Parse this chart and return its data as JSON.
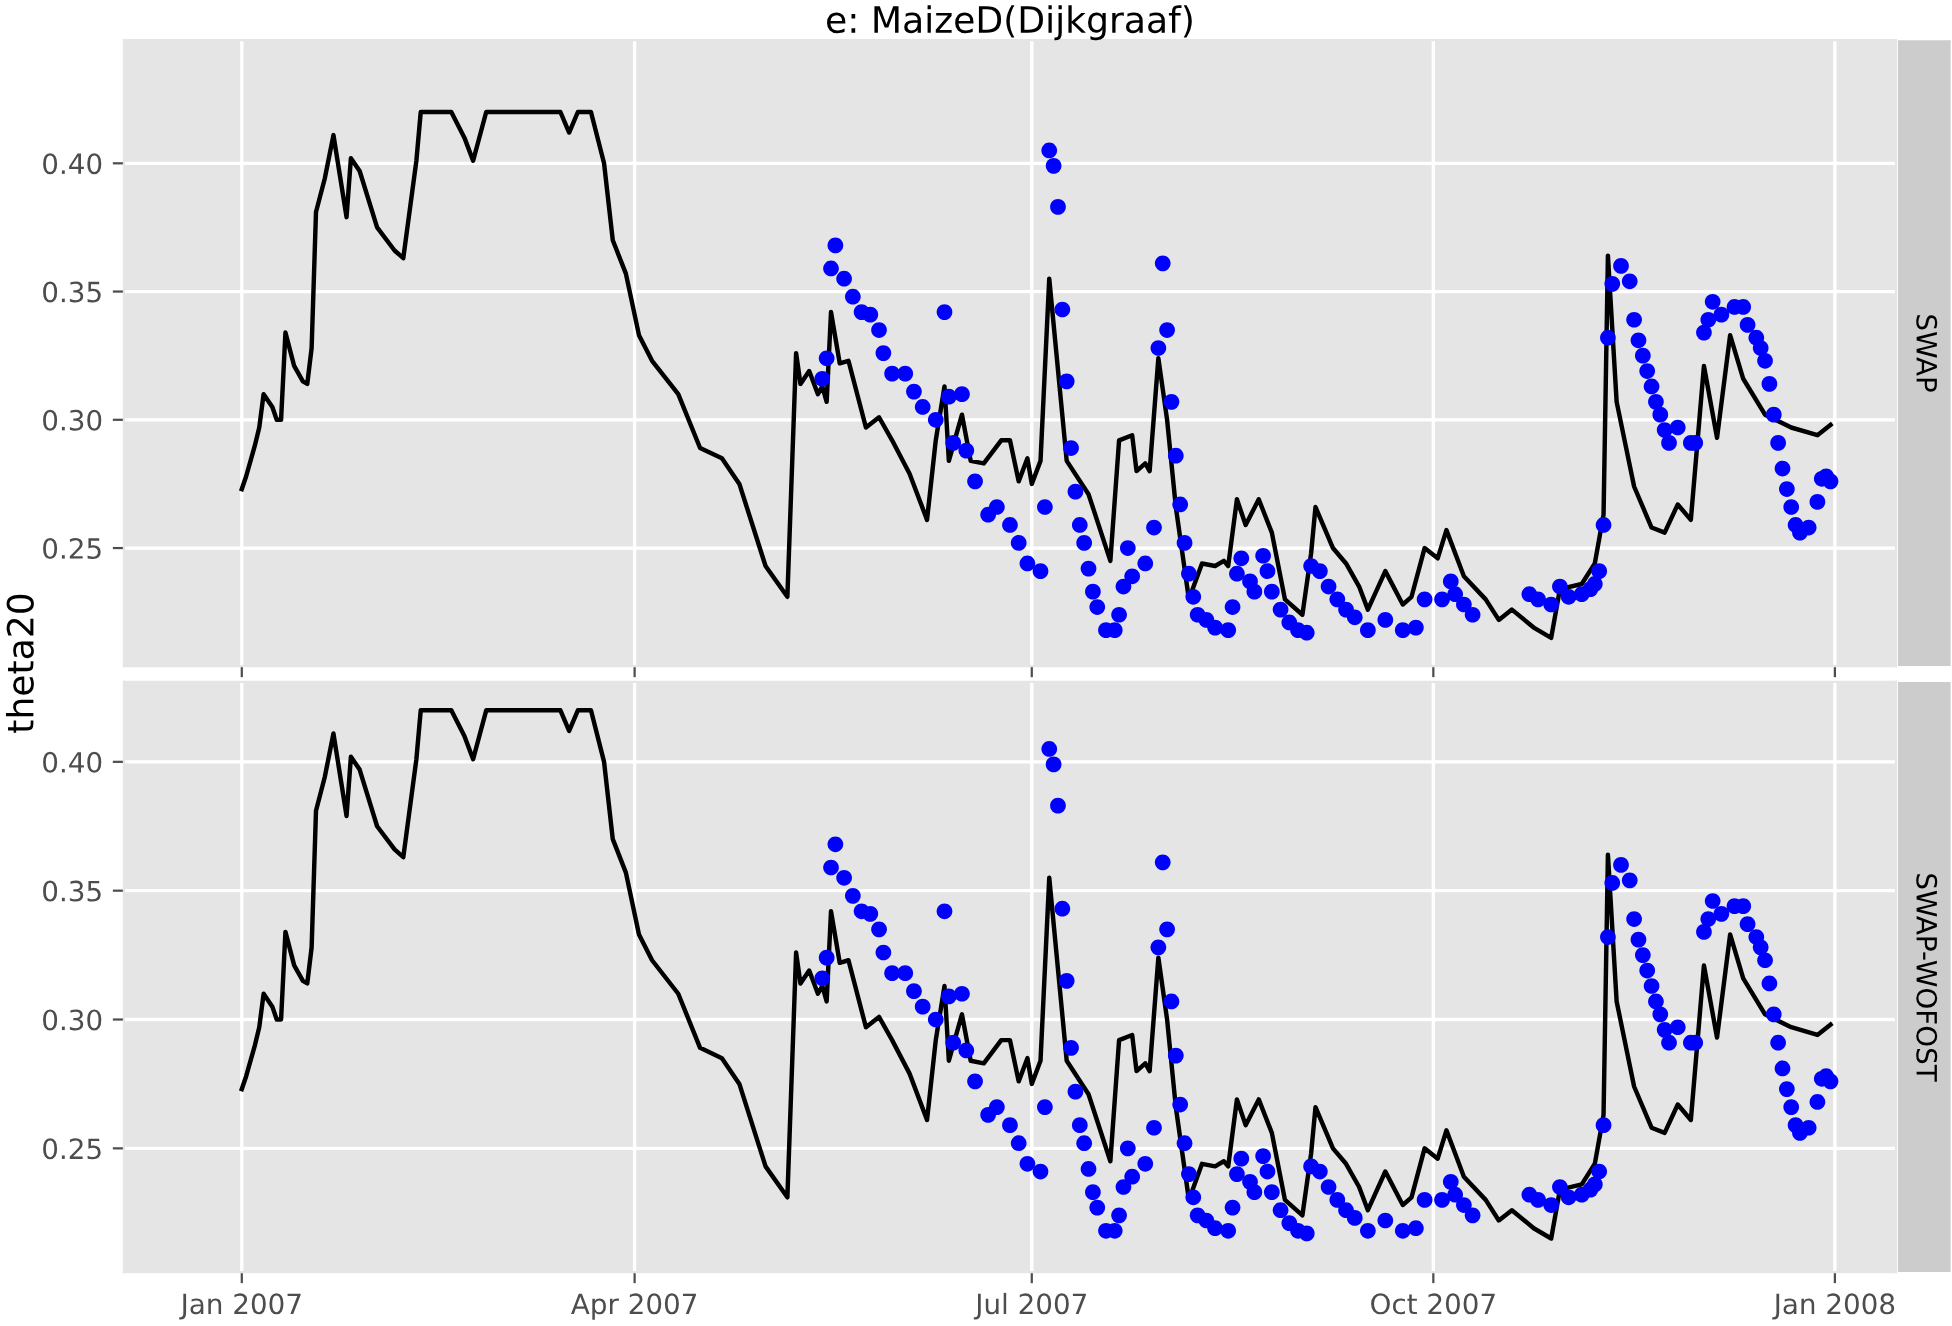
{
  "chart_data": [
    {
      "type": "line",
      "title": "e: MaizeD(Dijkgraaf)",
      "ylabel": "theta20",
      "annotations": [
        "SWAP"
      ],
      "grid": true,
      "tick_labels": "y",
      "xlim": [
        "2006-12-05",
        "2008-01-15"
      ],
      "ylim": [
        0.204,
        0.448
      ],
      "xticks": [
        {
          "value": "2007-01-01",
          "label": null
        },
        {
          "value": "2007-04-01",
          "label": null
        },
        {
          "value": "2007-07-01",
          "label": null
        },
        {
          "value": "2007-10-01",
          "label": null
        },
        {
          "value": "2008-01-01",
          "label": null
        }
      ],
      "yticks": [
        {
          "value": 0.25,
          "label": "0.25"
        },
        {
          "value": 0.3,
          "label": "0.30"
        },
        {
          "value": 0.35,
          "label": "0.35"
        },
        {
          "value": 0.4,
          "label": "0.40"
        }
      ],
      "series": [
        {
          "color": "#000000",
          "marker": "none",
          "line_style": "solid",
          "x": [
            "2007-01-01",
            "2007-01-02",
            "2007-01-04",
            "2007-01-05",
            "2007-01-06",
            "2007-01-08",
            "2007-01-09",
            "2007-01-10",
            "2007-01-11",
            "2007-01-13",
            "2007-01-15",
            "2007-01-16",
            "2007-01-17",
            "2007-01-18",
            "2007-01-20",
            "2007-01-22",
            "2007-01-25",
            "2007-01-26",
            "2007-01-28",
            "2007-02-01",
            "2007-02-05",
            "2007-02-07",
            "2007-02-10",
            "2007-02-11",
            "2007-02-18",
            "2007-02-21",
            "2007-02-23",
            "2007-02-26",
            "2007-03-15",
            "2007-03-17",
            "2007-03-19",
            "2007-03-22",
            "2007-03-25",
            "2007-03-27",
            "2007-03-30",
            "2007-04-02",
            "2007-04-05",
            "2007-04-11",
            "2007-04-16",
            "2007-04-21",
            "2007-04-25",
            "2007-05-01",
            "2007-05-06",
            "2007-05-08",
            "2007-05-09",
            "2007-05-11",
            "2007-05-13",
            "2007-05-14",
            "2007-05-15",
            "2007-05-16",
            "2007-05-18",
            "2007-05-20",
            "2007-05-24",
            "2007-05-27",
            "2007-05-30",
            "2007-06-03",
            "2007-06-07",
            "2007-06-09",
            "2007-06-11",
            "2007-06-12",
            "2007-06-15",
            "2007-06-17",
            "2007-06-20",
            "2007-06-24",
            "2007-06-26",
            "2007-06-28",
            "2007-06-30",
            "2007-07-01",
            "2007-07-03",
            "2007-07-05",
            "2007-07-09",
            "2007-07-14",
            "2007-07-19",
            "2007-07-21",
            "2007-07-24",
            "2007-07-25",
            "2007-07-27",
            "2007-07-28",
            "2007-07-30",
            "2007-08-01",
            "2007-08-03",
            "2007-08-06",
            "2007-08-09",
            "2007-08-12",
            "2007-08-14",
            "2007-08-15",
            "2007-08-17",
            "2007-08-19",
            "2007-08-22",
            "2007-08-25",
            "2007-08-28",
            "2007-09-01",
            "2007-09-03",
            "2007-09-04",
            "2007-09-08",
            "2007-09-11",
            "2007-09-14",
            "2007-09-16",
            "2007-09-20",
            "2007-09-24",
            "2007-09-26",
            "2007-09-29",
            "2007-10-02",
            "2007-10-04",
            "2007-10-08",
            "2007-10-13",
            "2007-10-16",
            "2007-10-19",
            "2007-10-24",
            "2007-10-28",
            "2007-10-30",
            "2007-11-04",
            "2007-11-07",
            "2007-11-09",
            "2007-11-10",
            "2007-11-12",
            "2007-11-16",
            "2007-11-20",
            "2007-11-23",
            "2007-11-26",
            "2007-11-29",
            "2007-12-02",
            "2007-12-05",
            "2007-12-08",
            "2007-12-11",
            "2007-12-16",
            "2007-12-22",
            "2007-12-28",
            "2007-12-31"
          ],
          "values": [
            0.273,
            0.278,
            0.29,
            0.297,
            0.31,
            0.305,
            0.3,
            0.3,
            0.334,
            0.321,
            0.315,
            0.314,
            0.328,
            0.381,
            0.394,
            0.411,
            0.379,
            0.402,
            0.397,
            0.375,
            0.366,
            0.363,
            0.401,
            0.42,
            0.42,
            0.41,
            0.401,
            0.42,
            0.42,
            0.412,
            0.42,
            0.42,
            0.4,
            0.37,
            0.357,
            0.333,
            0.323,
            0.31,
            0.289,
            0.285,
            0.275,
            0.243,
            0.231,
            0.326,
            0.314,
            0.319,
            0.31,
            0.313,
            0.307,
            0.342,
            0.322,
            0.323,
            0.297,
            0.301,
            0.292,
            0.279,
            0.261,
            0.292,
            0.313,
            0.284,
            0.302,
            0.284,
            0.283,
            0.292,
            0.292,
            0.276,
            0.285,
            0.275,
            0.284,
            0.355,
            0.284,
            0.271,
            0.245,
            0.292,
            0.294,
            0.28,
            0.283,
            0.28,
            0.324,
            0.3,
            0.266,
            0.23,
            0.244,
            0.243,
            0.245,
            0.243,
            0.269,
            0.259,
            0.269,
            0.256,
            0.23,
            0.224,
            0.248,
            0.266,
            0.25,
            0.244,
            0.235,
            0.226,
            0.241,
            0.228,
            0.231,
            0.25,
            0.246,
            0.257,
            0.239,
            0.23,
            0.222,
            0.226,
            0.219,
            0.215,
            0.234,
            0.236,
            0.244,
            0.263,
            0.364,
            0.307,
            0.274,
            0.258,
            0.256,
            0.267,
            0.261,
            0.321,
            0.293,
            0.333,
            0.316,
            0.302,
            0.297,
            0.294,
            0.298
          ]
        },
        {
          "type": "scatter",
          "color": "#0000ff",
          "marker": "circle",
          "x": [
            "2007-05-14",
            "2007-05-15",
            "2007-05-16",
            "2007-05-17",
            "2007-05-19",
            "2007-05-21",
            "2007-05-23",
            "2007-05-25",
            "2007-05-27",
            "2007-05-28",
            "2007-05-30",
            "2007-06-02",
            "2007-06-04",
            "2007-06-06",
            "2007-06-09",
            "2007-06-11",
            "2007-06-12",
            "2007-06-13",
            "2007-06-15",
            "2007-06-16",
            "2007-06-18",
            "2007-06-21",
            "2007-06-23",
            "2007-06-26",
            "2007-06-28",
            "2007-06-30",
            "2007-07-03",
            "2007-07-04",
            "2007-07-05",
            "2007-07-06",
            "2007-07-07",
            "2007-07-08",
            "2007-07-09",
            "2007-07-10",
            "2007-07-11",
            "2007-07-12",
            "2007-07-13",
            "2007-07-14",
            "2007-07-15",
            "2007-07-16",
            "2007-07-18",
            "2007-07-20",
            "2007-07-21",
            "2007-07-22",
            "2007-07-23",
            "2007-07-24",
            "2007-07-27",
            "2007-07-29",
            "2007-07-30",
            "2007-07-31",
            "2007-08-01",
            "2007-08-02",
            "2007-08-03",
            "2007-08-04",
            "2007-08-05",
            "2007-08-06",
            "2007-08-07",
            "2007-08-08",
            "2007-08-10",
            "2007-08-12",
            "2007-08-15",
            "2007-08-16",
            "2007-08-17",
            "2007-08-18",
            "2007-08-20",
            "2007-08-21",
            "2007-08-23",
            "2007-08-24",
            "2007-08-25",
            "2007-08-27",
            "2007-08-29",
            "2007-08-31",
            "2007-09-02",
            "2007-09-03",
            "2007-09-05",
            "2007-09-07",
            "2007-09-09",
            "2007-09-11",
            "2007-09-13",
            "2007-09-16",
            "2007-09-20",
            "2007-09-24",
            "2007-09-27",
            "2007-09-29",
            "2007-10-03",
            "2007-10-05",
            "2007-10-06",
            "2007-10-08",
            "2007-10-10",
            "2007-10-23",
            "2007-10-25",
            "2007-10-28",
            "2007-10-30",
            "2007-11-01",
            "2007-11-04",
            "2007-11-06",
            "2007-11-07",
            "2007-11-08",
            "2007-11-09",
            "2007-11-10",
            "2007-11-11",
            "2007-11-13",
            "2007-11-15",
            "2007-11-16",
            "2007-11-17",
            "2007-11-18",
            "2007-11-19",
            "2007-11-20",
            "2007-11-21",
            "2007-11-22",
            "2007-11-23",
            "2007-11-24",
            "2007-11-26",
            "2007-11-29",
            "2007-11-30",
            "2007-12-02",
            "2007-12-03",
            "2007-12-04",
            "2007-12-06",
            "2007-12-09",
            "2007-12-11",
            "2007-12-12",
            "2007-12-14",
            "2007-12-15",
            "2007-12-16",
            "2007-12-17",
            "2007-12-18",
            "2007-12-19",
            "2007-12-20",
            "2007-12-21",
            "2007-12-22",
            "2007-12-23",
            "2007-12-24",
            "2007-12-26",
            "2007-12-28",
            "2007-12-29",
            "2007-12-30",
            "2007-12-31"
          ],
          "values": [
            0.316,
            0.324,
            0.359,
            0.368,
            0.355,
            0.348,
            0.342,
            0.341,
            0.335,
            0.326,
            0.318,
            0.318,
            0.311,
            0.305,
            0.3,
            0.342,
            0.309,
            0.291,
            0.31,
            0.288,
            0.276,
            0.263,
            0.266,
            0.259,
            0.252,
            0.244,
            0.241,
            0.266,
            0.405,
            0.399,
            0.383,
            0.343,
            0.315,
            0.289,
            0.272,
            0.259,
            0.252,
            0.242,
            0.233,
            0.227,
            0.218,
            0.218,
            0.224,
            0.235,
            0.25,
            0.239,
            0.244,
            0.258,
            0.328,
            0.361,
            0.335,
            0.307,
            0.286,
            0.267,
            0.252,
            0.24,
            0.231,
            0.224,
            0.222,
            0.219,
            0.218,
            0.227,
            0.24,
            0.246,
            0.237,
            0.233,
            0.247,
            0.241,
            0.233,
            0.226,
            0.221,
            0.218,
            0.217,
            0.243,
            0.241,
            0.235,
            0.23,
            0.226,
            0.223,
            0.218,
            0.222,
            0.218,
            0.219,
            0.23,
            0.23,
            0.237,
            0.232,
            0.228,
            0.224,
            0.232,
            0.23,
            0.228,
            0.235,
            0.231,
            0.232,
            0.234,
            0.236,
            0.241,
            0.259,
            0.332,
            0.353,
            0.36,
            0.354,
            0.339,
            0.331,
            0.325,
            0.319,
            0.313,
            0.307,
            0.302,
            0.296,
            0.291,
            0.297,
            0.291,
            0.291,
            0.334,
            0.339,
            0.346,
            0.341,
            0.344,
            0.344,
            0.337,
            0.332,
            0.328,
            0.323,
            0.314,
            0.302,
            0.291,
            0.281,
            0.273,
            0.266,
            0.259,
            0.256,
            0.258,
            0.268,
            0.277,
            0.278,
            0.276
          ]
        }
      ]
    },
    {
      "type": "line",
      "annotations": [
        "SWAP-WOFOST"
      ],
      "grid": true,
      "xlim": [
        "2006-12-05",
        "2008-01-15"
      ],
      "ylim": [
        0.202,
        0.431
      ],
      "xticks": [
        {
          "value": "2007-01-01",
          "label": "Jan 2007"
        },
        {
          "value": "2007-04-01",
          "label": "Apr 2007"
        },
        {
          "value": "2007-07-01",
          "label": "Jul 2007"
        },
        {
          "value": "2007-10-01",
          "label": "Oct 2007"
        },
        {
          "value": "2008-01-01",
          "label": "Jan 2008"
        }
      ],
      "yticks": [
        {
          "value": 0.25,
          "label": "0.25"
        },
        {
          "value": 0.3,
          "label": "0.30"
        },
        {
          "value": 0.35,
          "label": "0.35"
        },
        {
          "value": 0.4,
          "label": "0.40"
        }
      ],
      "series": [
        {
          "color": "#000000",
          "marker": "none",
          "line_style": "solid",
          "x": [
            "2007-01-01",
            "2007-01-02",
            "2007-01-04",
            "2007-01-05",
            "2007-01-06",
            "2007-01-08",
            "2007-01-09",
            "2007-01-10",
            "2007-01-11",
            "2007-01-13",
            "2007-01-15",
            "2007-01-16",
            "2007-01-17",
            "2007-01-18",
            "2007-01-20",
            "2007-01-22",
            "2007-01-25",
            "2007-01-26",
            "2007-01-28",
            "2007-02-01",
            "2007-02-05",
            "2007-02-07",
            "2007-02-10",
            "2007-02-11",
            "2007-02-18",
            "2007-02-21",
            "2007-02-23",
            "2007-02-26",
            "2007-03-15",
            "2007-03-17",
            "2007-03-19",
            "2007-03-22",
            "2007-03-25",
            "2007-03-27",
            "2007-03-30",
            "2007-04-02",
            "2007-04-05",
            "2007-04-11",
            "2007-04-16",
            "2007-04-21",
            "2007-04-25",
            "2007-05-01",
            "2007-05-06",
            "2007-05-08",
            "2007-05-09",
            "2007-05-11",
            "2007-05-13",
            "2007-05-14",
            "2007-05-15",
            "2007-05-16",
            "2007-05-18",
            "2007-05-20",
            "2007-05-24",
            "2007-05-27",
            "2007-05-30",
            "2007-06-03",
            "2007-06-07",
            "2007-06-09",
            "2007-06-11",
            "2007-06-12",
            "2007-06-15",
            "2007-06-17",
            "2007-06-20",
            "2007-06-24",
            "2007-06-26",
            "2007-06-28",
            "2007-06-30",
            "2007-07-01",
            "2007-07-03",
            "2007-07-05",
            "2007-07-09",
            "2007-07-14",
            "2007-07-19",
            "2007-07-21",
            "2007-07-24",
            "2007-07-25",
            "2007-07-27",
            "2007-07-28",
            "2007-07-30",
            "2007-08-01",
            "2007-08-03",
            "2007-08-06",
            "2007-08-09",
            "2007-08-12",
            "2007-08-14",
            "2007-08-15",
            "2007-08-17",
            "2007-08-19",
            "2007-08-22",
            "2007-08-25",
            "2007-08-28",
            "2007-09-01",
            "2007-09-03",
            "2007-09-04",
            "2007-09-08",
            "2007-09-11",
            "2007-09-14",
            "2007-09-16",
            "2007-09-20",
            "2007-09-24",
            "2007-09-26",
            "2007-09-29",
            "2007-10-02",
            "2007-10-04",
            "2007-10-08",
            "2007-10-13",
            "2007-10-16",
            "2007-10-19",
            "2007-10-24",
            "2007-10-28",
            "2007-10-30",
            "2007-11-04",
            "2007-11-07",
            "2007-11-09",
            "2007-11-10",
            "2007-11-12",
            "2007-11-16",
            "2007-11-20",
            "2007-11-23",
            "2007-11-26",
            "2007-11-29",
            "2007-12-02",
            "2007-12-05",
            "2007-12-08",
            "2007-12-11",
            "2007-12-16",
            "2007-12-22",
            "2007-12-28",
            "2007-12-31"
          ],
          "values": [
            0.273,
            0.278,
            0.29,
            0.297,
            0.31,
            0.305,
            0.3,
            0.3,
            0.334,
            0.321,
            0.315,
            0.314,
            0.328,
            0.381,
            0.394,
            0.411,
            0.379,
            0.402,
            0.397,
            0.375,
            0.366,
            0.363,
            0.401,
            0.42,
            0.42,
            0.41,
            0.401,
            0.42,
            0.42,
            0.412,
            0.42,
            0.42,
            0.4,
            0.37,
            0.357,
            0.333,
            0.323,
            0.31,
            0.289,
            0.285,
            0.275,
            0.243,
            0.231,
            0.326,
            0.314,
            0.319,
            0.31,
            0.313,
            0.307,
            0.342,
            0.322,
            0.323,
            0.297,
            0.301,
            0.292,
            0.279,
            0.261,
            0.292,
            0.313,
            0.284,
            0.302,
            0.284,
            0.283,
            0.292,
            0.292,
            0.276,
            0.285,
            0.275,
            0.284,
            0.355,
            0.284,
            0.271,
            0.245,
            0.292,
            0.294,
            0.28,
            0.283,
            0.28,
            0.324,
            0.3,
            0.266,
            0.23,
            0.244,
            0.243,
            0.245,
            0.243,
            0.269,
            0.259,
            0.269,
            0.256,
            0.23,
            0.224,
            0.248,
            0.266,
            0.25,
            0.244,
            0.235,
            0.226,
            0.241,
            0.228,
            0.231,
            0.25,
            0.246,
            0.257,
            0.239,
            0.23,
            0.222,
            0.226,
            0.219,
            0.215,
            0.234,
            0.236,
            0.244,
            0.263,
            0.364,
            0.307,
            0.274,
            0.258,
            0.256,
            0.267,
            0.261,
            0.321,
            0.293,
            0.333,
            0.316,
            0.302,
            0.297,
            0.294,
            0.298
          ]
        },
        {
          "type": "scatter",
          "color": "#0000ff",
          "marker": "circle",
          "x": [
            "2007-05-14",
            "2007-05-15",
            "2007-05-16",
            "2007-05-17",
            "2007-05-19",
            "2007-05-21",
            "2007-05-23",
            "2007-05-25",
            "2007-05-27",
            "2007-05-28",
            "2007-05-30",
            "2007-06-02",
            "2007-06-04",
            "2007-06-06",
            "2007-06-09",
            "2007-06-11",
            "2007-06-12",
            "2007-06-13",
            "2007-06-15",
            "2007-06-16",
            "2007-06-18",
            "2007-06-21",
            "2007-06-23",
            "2007-06-26",
            "2007-06-28",
            "2007-06-30",
            "2007-07-03",
            "2007-07-04",
            "2007-07-05",
            "2007-07-06",
            "2007-07-07",
            "2007-07-08",
            "2007-07-09",
            "2007-07-10",
            "2007-07-11",
            "2007-07-12",
            "2007-07-13",
            "2007-07-14",
            "2007-07-15",
            "2007-07-16",
            "2007-07-18",
            "2007-07-20",
            "2007-07-21",
            "2007-07-22",
            "2007-07-23",
            "2007-07-24",
            "2007-07-27",
            "2007-07-29",
            "2007-07-30",
            "2007-07-31",
            "2007-08-01",
            "2007-08-02",
            "2007-08-03",
            "2007-08-04",
            "2007-08-05",
            "2007-08-06",
            "2007-08-07",
            "2007-08-08",
            "2007-08-10",
            "2007-08-12",
            "2007-08-15",
            "2007-08-16",
            "2007-08-17",
            "2007-08-18",
            "2007-08-20",
            "2007-08-21",
            "2007-08-23",
            "2007-08-24",
            "2007-08-25",
            "2007-08-27",
            "2007-08-29",
            "2007-08-31",
            "2007-09-02",
            "2007-09-03",
            "2007-09-05",
            "2007-09-07",
            "2007-09-09",
            "2007-09-11",
            "2007-09-13",
            "2007-09-16",
            "2007-09-20",
            "2007-09-24",
            "2007-09-27",
            "2007-09-29",
            "2007-10-03",
            "2007-10-05",
            "2007-10-06",
            "2007-10-08",
            "2007-10-10",
            "2007-10-23",
            "2007-10-25",
            "2007-10-28",
            "2007-10-30",
            "2007-11-01",
            "2007-11-04",
            "2007-11-06",
            "2007-11-07",
            "2007-11-08",
            "2007-11-09",
            "2007-11-10",
            "2007-11-11",
            "2007-11-13",
            "2007-11-15",
            "2007-11-16",
            "2007-11-17",
            "2007-11-18",
            "2007-11-19",
            "2007-11-20",
            "2007-11-21",
            "2007-11-22",
            "2007-11-23",
            "2007-11-24",
            "2007-11-26",
            "2007-11-29",
            "2007-11-30",
            "2007-12-02",
            "2007-12-03",
            "2007-12-04",
            "2007-12-06",
            "2007-12-09",
            "2007-12-11",
            "2007-12-12",
            "2007-12-14",
            "2007-12-15",
            "2007-12-16",
            "2007-12-17",
            "2007-12-18",
            "2007-12-19",
            "2007-12-20",
            "2007-12-21",
            "2007-12-22",
            "2007-12-23",
            "2007-12-24",
            "2007-12-26",
            "2007-12-28",
            "2007-12-29",
            "2007-12-30",
            "2007-12-31"
          ],
          "values": [
            0.316,
            0.324,
            0.359,
            0.368,
            0.355,
            0.348,
            0.342,
            0.341,
            0.335,
            0.326,
            0.318,
            0.318,
            0.311,
            0.305,
            0.3,
            0.342,
            0.309,
            0.291,
            0.31,
            0.288,
            0.276,
            0.263,
            0.266,
            0.259,
            0.252,
            0.244,
            0.241,
            0.266,
            0.405,
            0.399,
            0.383,
            0.343,
            0.315,
            0.289,
            0.272,
            0.259,
            0.252,
            0.242,
            0.233,
            0.227,
            0.218,
            0.218,
            0.224,
            0.235,
            0.25,
            0.239,
            0.244,
            0.258,
            0.328,
            0.361,
            0.335,
            0.307,
            0.286,
            0.267,
            0.252,
            0.24,
            0.231,
            0.224,
            0.222,
            0.219,
            0.218,
            0.227,
            0.24,
            0.246,
            0.237,
            0.233,
            0.247,
            0.241,
            0.233,
            0.226,
            0.221,
            0.218,
            0.217,
            0.243,
            0.241,
            0.235,
            0.23,
            0.226,
            0.223,
            0.218,
            0.222,
            0.218,
            0.219,
            0.23,
            0.23,
            0.237,
            0.232,
            0.228,
            0.224,
            0.232,
            0.23,
            0.228,
            0.235,
            0.231,
            0.232,
            0.234,
            0.236,
            0.241,
            0.259,
            0.332,
            0.353,
            0.36,
            0.354,
            0.339,
            0.331,
            0.325,
            0.319,
            0.313,
            0.307,
            0.302,
            0.296,
            0.291,
            0.297,
            0.291,
            0.291,
            0.334,
            0.339,
            0.346,
            0.341,
            0.344,
            0.344,
            0.337,
            0.332,
            0.328,
            0.323,
            0.314,
            0.302,
            0.291,
            0.281,
            0.273,
            0.266,
            0.259,
            0.256,
            0.258,
            0.268,
            0.277,
            0.278,
            0.276
          ]
        }
      ]
    }
  ]
}
